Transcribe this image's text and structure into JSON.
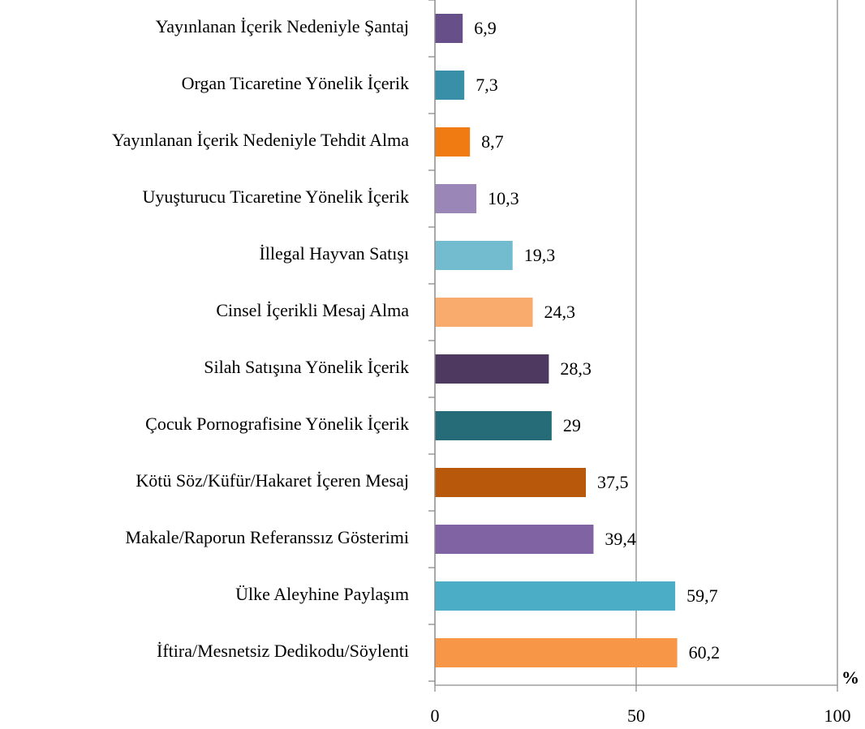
{
  "chart_data": {
    "type": "barh",
    "categories": [
      "Yayınlanan İçerik Nedeniyle Şantaj",
      "Organ Ticaretine Yönelik İçerik",
      "Yayınlanan İçerik Nedeniyle Tehdit Alma",
      "Uyuşturucu Ticaretine Yönelik İçerik",
      "İllegal Hayvan Satışı",
      "Cinsel İçerikli Mesaj Alma",
      "Silah Satışına Yönelik İçerik",
      "Çocuk Pornografisine Yönelik İçerik",
      "Kötü Söz/Küfür/Hakaret İçeren Mesaj",
      "Makale/Raporun Referanssız Gösterimi",
      "Ülke Aleyhine Paylaşım",
      "İftira/Mesnetsiz Dedikodu/Söylenti"
    ],
    "values": [
      6.9,
      7.3,
      8.7,
      10.3,
      19.3,
      24.3,
      28.3,
      29,
      37.5,
      39.4,
      59.7,
      60.2
    ],
    "value_labels": [
      "6,9",
      "7,3",
      "8,7",
      "10,3",
      "19,3",
      "24,3",
      "28,3",
      "29",
      "37,5",
      "39,4",
      "59,7",
      "60,2"
    ],
    "colors": [
      "#67508a",
      "#3a8fa8",
      "#f07b12",
      "#9b86b8",
      "#73bcd0",
      "#f9ab6d",
      "#4e3a60",
      "#266b78",
      "#b8580a",
      "#7f63a3",
      "#4badc6",
      "#f79646"
    ],
    "x_label": "%",
    "xlim": [
      0,
      100
    ],
    "xticks": [
      0,
      50,
      100
    ],
    "grid": true
  }
}
